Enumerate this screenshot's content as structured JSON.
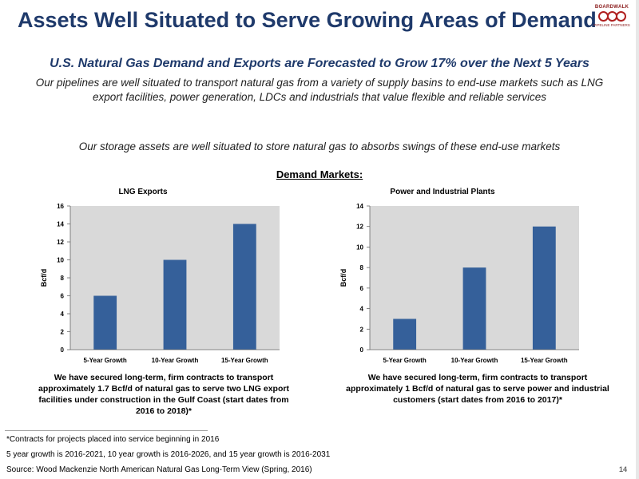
{
  "slide": {
    "title": "Assets Well Situated to Serve Growing Areas of Demand",
    "subtitle": "U.S. Natural Gas Demand and Exports are Forecasted to Grow 17% over the Next 5 Years",
    "paragraph1": "Our pipelines are well situated to transport natural gas from a variety of supply basins to end-use markets such as LNG export facilities, power generation, LDCs and industrials that value flexible and reliable services",
    "paragraph2": "Our storage assets are well situated to store natural gas to absorbs swings of these end-use markets",
    "demand_heading": "Demand Markets:",
    "caption_left": "We have secured long-term, firm contracts to transport approximately 1.7 Bcf/d of natural gas to serve two LNG export facilities under construction in the Gulf Coast (start dates from 2016 to 2018)*",
    "caption_right": "We have secured long-term, firm contracts to transport approximately 1 Bcf/d of natural gas to serve power and industrial customers (start dates from 2016 to 2017)*",
    "footnote1": "*Contracts for projects placed into service beginning in 2016",
    "footnote2": "5 year growth is 2016-2021, 10 year growth is 2016-2026, and 15 year growth is 2016-2031",
    "source": "Source:  Wood Mackenzie North American Natural Gas Long-Term View (Spring, 2016)",
    "page_number": "14"
  },
  "logo": {
    "top": "BOARDWALK",
    "bottom": "PIPELINE PARTNERS"
  },
  "colors": {
    "title": "#1f3a6b",
    "bar": "#35609a",
    "plot_bg": "#d9d9d9"
  },
  "chart_data": [
    {
      "type": "bar",
      "title": "LNG Exports",
      "ylabel": "Bcf/d",
      "categories": [
        "5-Year Growth",
        "10-Year Growth",
        "15-Year Growth"
      ],
      "values": [
        6,
        10,
        14
      ],
      "ylim": [
        0,
        16
      ],
      "yticks": [
        0,
        2,
        4,
        6,
        8,
        10,
        12,
        14,
        16
      ],
      "grid": false
    },
    {
      "type": "bar",
      "title": "Power and Industrial Plants",
      "ylabel": "Bcf/d",
      "categories": [
        "5-Year Growth",
        "10-Year Growth",
        "15-Year Growth"
      ],
      "values": [
        3,
        8,
        12
      ],
      "ylim": [
        0,
        14
      ],
      "yticks": [
        0,
        2,
        4,
        6,
        8,
        10,
        12,
        14
      ],
      "grid": false
    }
  ]
}
